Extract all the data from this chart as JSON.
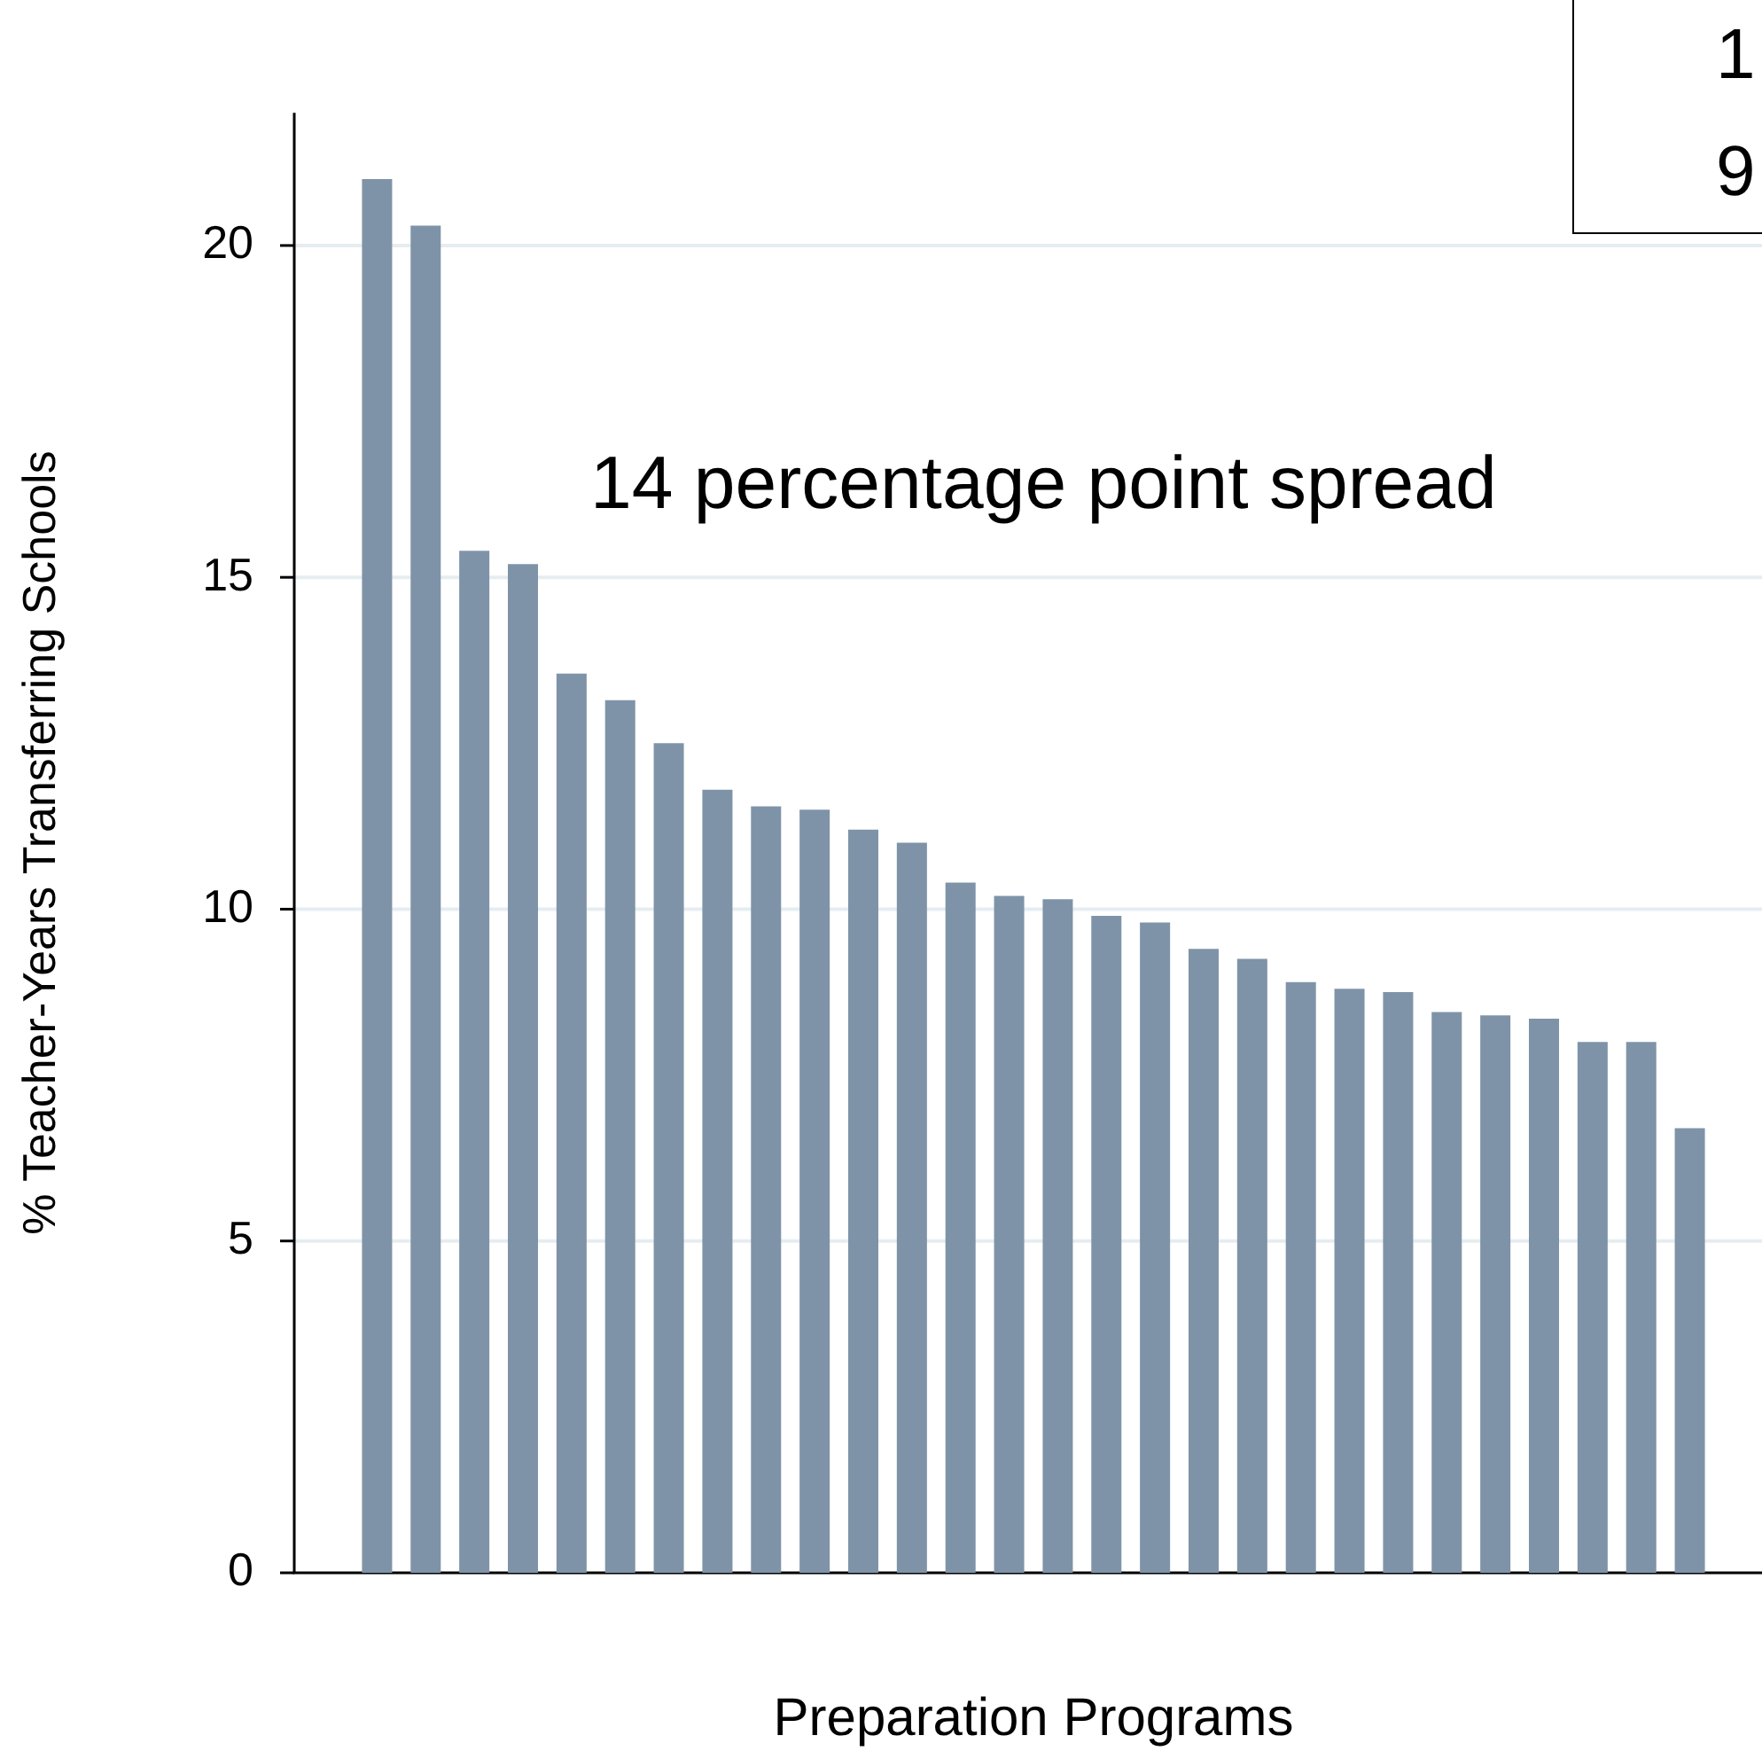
{
  "chart_data": {
    "type": "bar",
    "xlabel": "Preparation Programs",
    "ylabel": "% Teacher-Years Transferring Schools",
    "categories": [
      null,
      null,
      null,
      null,
      null,
      null,
      null,
      null,
      null,
      null,
      null,
      null,
      null,
      null,
      null,
      null,
      null,
      null,
      null,
      null,
      null,
      null,
      null,
      null,
      null,
      null,
      null,
      null
    ],
    "values": [
      21.0,
      20.3,
      15.4,
      15.2,
      13.55,
      13.15,
      12.5,
      11.8,
      11.55,
      11.5,
      11.2,
      11.0,
      10.4,
      10.2,
      10.15,
      9.9,
      9.8,
      9.4,
      9.25,
      8.9,
      8.8,
      8.75,
      8.45,
      8.4,
      8.35,
      8.0,
      8.0,
      6.7
    ],
    "color": "#7f93a8",
    "ylim": [
      0,
      22
    ],
    "yticks": [
      0,
      5,
      10,
      15,
      20
    ],
    "grid": "y",
    "tick_labels": "y",
    "legend": false,
    "annotations": [
      "14 percentage point spread",
      "19"
    ]
  }
}
